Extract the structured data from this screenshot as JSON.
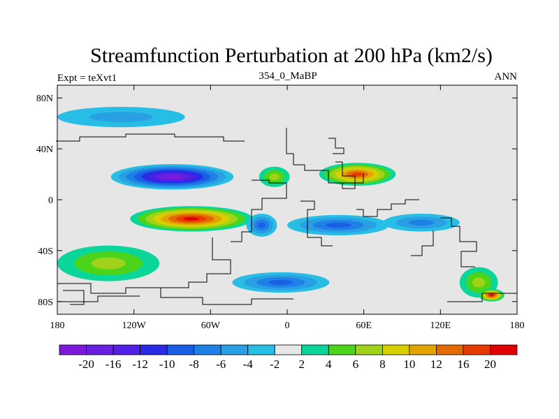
{
  "chart_data": {
    "type": "heatmap",
    "title": "Streamfunction Perturbation at 200 hPa (km2/s)",
    "left_string": "Expt = teXvt1",
    "center_string": "354_0_MaBP",
    "right_string": "ANN",
    "x_ticks": [
      {
        "value": -180,
        "label": "180"
      },
      {
        "value": -120,
        "label": "120W"
      },
      {
        "value": -60,
        "label": "60W"
      },
      {
        "value": 0,
        "label": "0"
      },
      {
        "value": 60,
        "label": "60E"
      },
      {
        "value": 120,
        "label": "120E"
      },
      {
        "value": 180,
        "label": "180"
      }
    ],
    "y_ticks": [
      {
        "value": 80,
        "label": "80N"
      },
      {
        "value": 40,
        "label": "40N"
      },
      {
        "value": 0,
        "label": "0"
      },
      {
        "value": -40,
        "label": "40S"
      },
      {
        "value": -80,
        "label": "80S"
      }
    ],
    "xlim": [
      -180,
      180
    ],
    "ylim": [
      -90,
      90
    ],
    "colorbar_levels": [
      "-20",
      "-16",
      "-12",
      "-10",
      "-8",
      "-6",
      "-4",
      "-2",
      "2",
      "4",
      "6",
      "8",
      "10",
      "12",
      "16",
      "20"
    ],
    "colorbar_colors": [
      "#7e18dc",
      "#6a1fe0",
      "#5020e4",
      "#2a2ae6",
      "#1a5ee6",
      "#1f80e6",
      "#2aa0e4",
      "#28bde4",
      "#e6e6e6",
      "#0ad69a",
      "#4cd41a",
      "#a0d21a",
      "#d6d000",
      "#e3a400",
      "#e36a00",
      "#e63a00",
      "#e10000"
    ],
    "features": [
      {
        "lon": -130,
        "lat": 65,
        "rx": 50,
        "ry": 8,
        "value": -4
      },
      {
        "lon": -90,
        "lat": 18,
        "rx": 48,
        "ry": 10,
        "value": -20
      },
      {
        "lon": -10,
        "lat": 18,
        "rx": 12,
        "ry": 8,
        "value": 6
      },
      {
        "lon": 55,
        "lat": 20,
        "rx": 30,
        "ry": 9,
        "value": 16
      },
      {
        "lon": -75,
        "lat": -15,
        "rx": 48,
        "ry": 10,
        "value": 20
      },
      {
        "lon": -20,
        "lat": -20,
        "rx": 12,
        "ry": 9,
        "value": -8
      },
      {
        "lon": 40,
        "lat": -20,
        "rx": 40,
        "ry": 8,
        "value": -8
      },
      {
        "lon": 105,
        "lat": -18,
        "rx": 30,
        "ry": 7,
        "value": -6
      },
      {
        "lon": -140,
        "lat": -50,
        "rx": 40,
        "ry": 14,
        "value": 6
      },
      {
        "lon": -5,
        "lat": -65,
        "rx": 38,
        "ry": 8,
        "value": -8
      },
      {
        "lon": 150,
        "lat": -65,
        "rx": 15,
        "ry": 12,
        "value": 6
      },
      {
        "lon": 160,
        "lat": -75,
        "rx": 10,
        "ry": 5,
        "value": 20
      }
    ]
  }
}
